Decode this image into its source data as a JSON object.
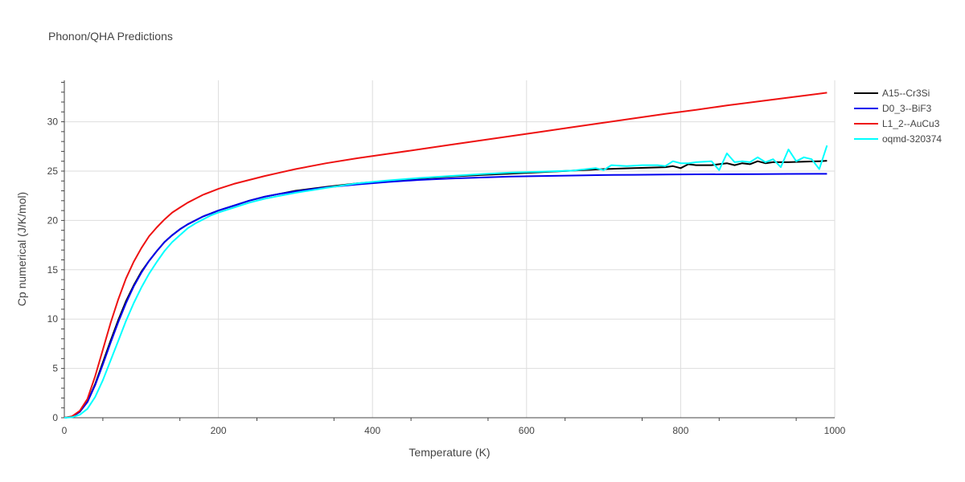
{
  "chart_data": {
    "type": "line",
    "title": "Phonon/QHA Predictions",
    "xlabel": "Temperature (K)",
    "ylabel": "Cp numerical (J/K/mol)",
    "xlim": [
      0,
      1000
    ],
    "ylim": [
      0,
      34.2
    ],
    "xticks": [
      0,
      200,
      400,
      600,
      800,
      1000
    ],
    "yticks": [
      0,
      5,
      10,
      15,
      20,
      25,
      30
    ],
    "grid": true,
    "legend_position": "top-right",
    "series": [
      {
        "name": "A15--Cr3Si",
        "color": "#000000",
        "x": [
          0,
          10,
          20,
          30,
          40,
          50,
          60,
          70,
          80,
          90,
          100,
          110,
          120,
          130,
          140,
          150,
          160,
          170,
          180,
          190,
          200,
          220,
          240,
          260,
          280,
          300,
          340,
          380,
          420,
          460,
          500,
          540,
          580,
          620,
          660,
          700,
          740,
          780,
          790,
          800,
          810,
          820,
          840,
          850,
          860,
          870,
          880,
          890,
          900,
          910,
          920,
          940,
          960,
          980,
          990
        ],
        "y": [
          0,
          0.1,
          0.6,
          1.6,
          3.4,
          5.6,
          7.8,
          9.9,
          11.8,
          13.4,
          14.8,
          15.9,
          16.9,
          17.8,
          18.5,
          19.1,
          19.6,
          20.0,
          20.4,
          20.7,
          21.0,
          21.5,
          22.0,
          22.4,
          22.7,
          23.0,
          23.4,
          23.75,
          24.0,
          24.25,
          24.45,
          24.6,
          24.75,
          24.9,
          25.05,
          25.2,
          25.3,
          25.4,
          25.5,
          25.3,
          25.7,
          25.6,
          25.6,
          25.7,
          25.8,
          25.6,
          25.8,
          25.7,
          26.0,
          25.8,
          25.9,
          25.9,
          25.95,
          26.0,
          26.05
        ]
      },
      {
        "name": "D0_3--BiF3",
        "color": "#0000ee",
        "x": [
          0,
          10,
          20,
          30,
          40,
          50,
          60,
          70,
          80,
          90,
          100,
          110,
          120,
          130,
          140,
          150,
          160,
          170,
          180,
          190,
          200,
          220,
          240,
          260,
          280,
          300,
          340,
          380,
          420,
          460,
          500,
          540,
          580,
          620,
          660,
          700,
          740,
          780,
          820,
          860,
          900,
          940,
          990
        ],
        "y": [
          0,
          0.1,
          0.6,
          1.6,
          3.3,
          5.4,
          7.6,
          9.7,
          11.6,
          13.3,
          14.7,
          15.9,
          16.9,
          17.8,
          18.5,
          19.1,
          19.6,
          20.0,
          20.4,
          20.7,
          21.0,
          21.5,
          22.0,
          22.4,
          22.7,
          22.95,
          23.35,
          23.65,
          23.9,
          24.1,
          24.25,
          24.35,
          24.45,
          24.5,
          24.55,
          24.6,
          24.62,
          24.65,
          24.67,
          24.68,
          24.7,
          24.71,
          24.72
        ]
      },
      {
        "name": "L1_2--AuCu3",
        "color": "#ee1111",
        "x": [
          0,
          10,
          20,
          30,
          40,
          50,
          60,
          70,
          80,
          90,
          100,
          110,
          120,
          130,
          140,
          150,
          160,
          170,
          180,
          190,
          200,
          220,
          240,
          260,
          280,
          300,
          340,
          380,
          420,
          460,
          500,
          540,
          580,
          620,
          660,
          700,
          740,
          780,
          820,
          860,
          900,
          940,
          990
        ],
        "y": [
          0,
          0.15,
          0.7,
          1.9,
          4.2,
          6.9,
          9.6,
          12.0,
          14.1,
          15.8,
          17.2,
          18.4,
          19.3,
          20.1,
          20.8,
          21.3,
          21.8,
          22.2,
          22.6,
          22.9,
          23.2,
          23.7,
          24.1,
          24.5,
          24.85,
          25.2,
          25.8,
          26.3,
          26.75,
          27.2,
          27.65,
          28.1,
          28.55,
          29.0,
          29.45,
          29.9,
          30.35,
          30.8,
          31.2,
          31.65,
          32.05,
          32.45,
          32.95
        ]
      },
      {
        "name": "oqmd-320374",
        "color": "#00ffff",
        "x": [
          0,
          10,
          20,
          30,
          40,
          50,
          60,
          70,
          80,
          90,
          100,
          110,
          120,
          130,
          140,
          150,
          160,
          170,
          180,
          190,
          200,
          220,
          240,
          260,
          280,
          300,
          340,
          380,
          420,
          460,
          500,
          540,
          580,
          620,
          660,
          690,
          700,
          710,
          730,
          750,
          770,
          780,
          790,
          800,
          810,
          820,
          840,
          850,
          860,
          870,
          880,
          890,
          900,
          910,
          920,
          930,
          940,
          950,
          960,
          970,
          980,
          990
        ],
        "y": [
          0,
          0.05,
          0.3,
          0.9,
          2.1,
          3.8,
          5.8,
          7.8,
          9.8,
          11.6,
          13.2,
          14.6,
          15.8,
          16.9,
          17.8,
          18.5,
          19.2,
          19.7,
          20.1,
          20.5,
          20.8,
          21.3,
          21.8,
          22.2,
          22.5,
          22.8,
          23.3,
          23.75,
          24.05,
          24.3,
          24.5,
          24.7,
          24.85,
          24.95,
          25.05,
          25.3,
          25.1,
          25.6,
          25.5,
          25.6,
          25.6,
          25.5,
          26.0,
          25.8,
          25.8,
          25.9,
          26.0,
          25.1,
          26.8,
          25.9,
          26.0,
          25.9,
          26.4,
          25.9,
          26.2,
          25.4,
          27.2,
          26.0,
          26.4,
          26.2,
          25.2,
          27.6
        ]
      }
    ]
  }
}
